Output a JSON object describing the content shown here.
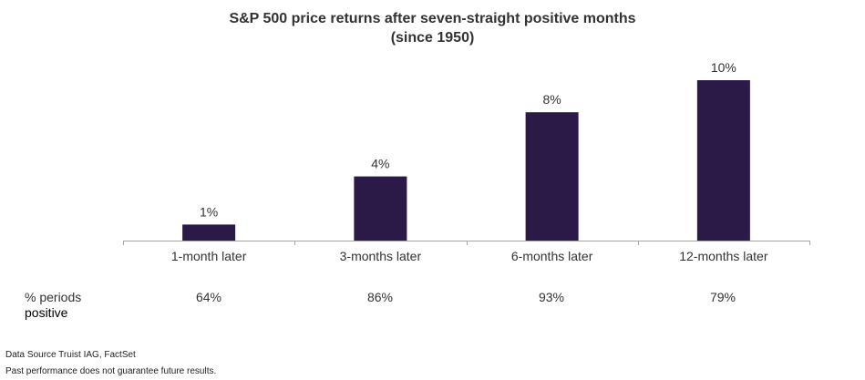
{
  "chart_data": {
    "type": "bar",
    "title": "S&P 500 price returns after seven-straight positive months",
    "subtitle": "(since 1950)",
    "categories": [
      "1-month later",
      "3-months later",
      "6-months later",
      "12-months later"
    ],
    "values": [
      1,
      4,
      8,
      10
    ],
    "value_labels": [
      "1%",
      "4%",
      "8%",
      "10%"
    ],
    "ylim": [
      0,
      10
    ],
    "bar_color": "#2b1a47",
    "grid": false,
    "legend": "none"
  },
  "positive_row": {
    "label_line1": "% periods",
    "label_line2": "positive",
    "values": [
      "64%",
      "86%",
      "93%",
      "79%"
    ]
  },
  "footnotes": {
    "source": "Data Source Truist IAG, FactSet",
    "disclaimer": "Past performance does not guarantee future results."
  }
}
